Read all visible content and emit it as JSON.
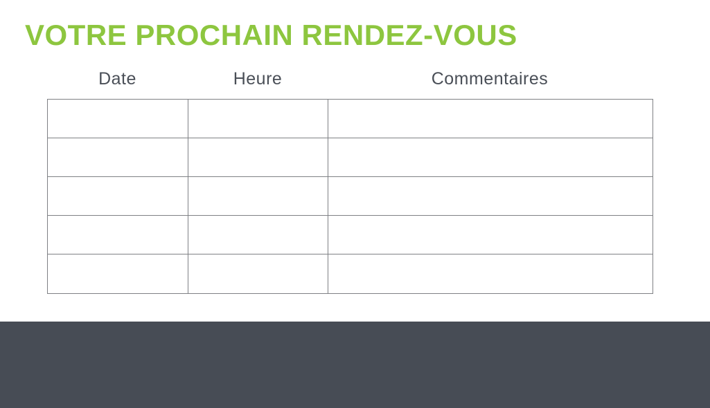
{
  "title": "VOTRE PROCHAIN RENDEZ-VOUS",
  "colors": {
    "accent_green": "#8dc63f",
    "footer_dark": "#474c55",
    "heading_text": "#4a4f57",
    "table_border": "#7e8084",
    "page_background": "#ffffff"
  },
  "table": {
    "columns": [
      {
        "key": "date",
        "label": "Date"
      },
      {
        "key": "heure",
        "label": "Heure"
      },
      {
        "key": "commentaires",
        "label": "Commentaires"
      }
    ],
    "rows": [
      [
        "",
        "",
        ""
      ],
      [
        "",
        "",
        ""
      ],
      [
        "",
        "",
        ""
      ],
      [
        "",
        "",
        ""
      ],
      [
        "",
        "",
        ""
      ]
    ]
  }
}
